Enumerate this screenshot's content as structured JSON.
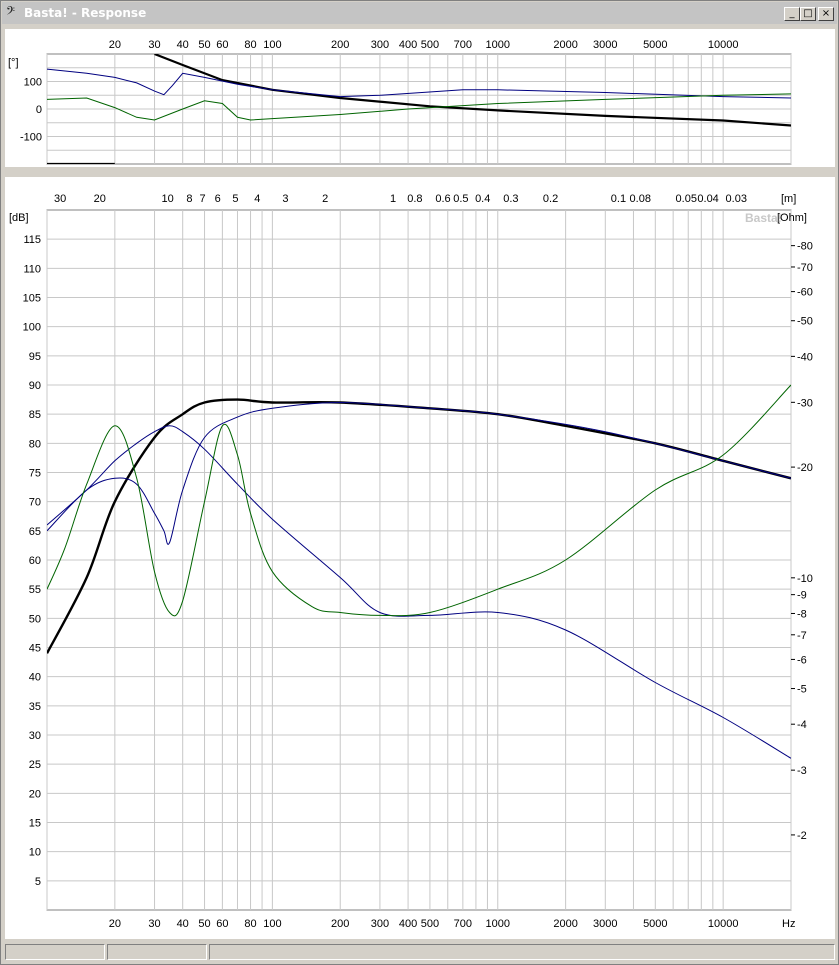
{
  "window": {
    "title": "Basta! - Response",
    "icon": "bass-clef-icon",
    "buttons": {
      "minimize": "_",
      "maximize": "□",
      "close": "×"
    }
  },
  "phase_chart": {
    "unit_label": "[°]",
    "freq_ticks": [
      "20",
      "30",
      "40",
      "50",
      "60",
      "80",
      "100",
      "200",
      "300",
      "400",
      "500",
      "700",
      "1000",
      "2000",
      "3000",
      "5000",
      "10000"
    ],
    "y_ticks": [
      "100",
      "0",
      "-100"
    ]
  },
  "spl_chart": {
    "db_label": "[dB]",
    "ohm_label": "[Ohm]",
    "m_label": "[m]",
    "hz_label": "Hz",
    "watermark": "Basta!",
    "db_ticks": [
      "115",
      "110",
      "105",
      "100",
      "95",
      "90",
      "85",
      "80",
      "75",
      "70",
      "65",
      "60",
      "55",
      "50",
      "45",
      "40",
      "35",
      "30",
      "25",
      "20",
      "15",
      "10",
      "5"
    ],
    "ohm_ticks": [
      "80",
      "70",
      "60",
      "50",
      "40",
      "30",
      "20",
      "10",
      "9",
      "8",
      "7",
      "6",
      "5",
      "4",
      "3",
      "2"
    ],
    "wavelength_ticks": [
      "30",
      "20",
      "10",
      "8",
      "7",
      "6",
      "5",
      "4",
      "3",
      "2",
      "1",
      "0.8",
      "0.6",
      "0.5",
      "0.4",
      "0.3",
      "0.2",
      "0.1",
      "0.08",
      "0.05",
      "0.04",
      "0.03"
    ],
    "freq_ticks": [
      "20",
      "30",
      "40",
      "50",
      "60",
      "80",
      "100",
      "200",
      "300",
      "400",
      "500",
      "700",
      "1000",
      "2000",
      "3000",
      "5000",
      "10000"
    ]
  },
  "colors": {
    "spl": "#000000",
    "blue_curves": "#000080",
    "green_curve": "#006400",
    "grid": "#c8c8c8"
  },
  "chart_data": [
    {
      "type": "line",
      "title": "",
      "xlabel": "",
      "ylabel": "[°]",
      "xscale": "log",
      "xlim": [
        10,
        20000
      ],
      "ylim": [
        -200,
        200
      ],
      "series": [
        {
          "name": "",
          "color": "black",
          "x": [
            10,
            20,
            30,
            40,
            60,
            100,
            200,
            500,
            1000,
            3000,
            10000,
            20000
          ],
          "y": [
            -200,
            -200,
            200,
            160,
            105,
            70,
            40,
            10,
            -5,
            -25,
            -42,
            -60
          ]
        },
        {
          "name": "",
          "color": "navy",
          "x": [
            10,
            15,
            20,
            25,
            30,
            33,
            36,
            40,
            50,
            70,
            100,
            200,
            300,
            700,
            1000,
            3000,
            10000,
            20000
          ],
          "y": [
            145,
            130,
            115,
            95,
            65,
            52,
            85,
            130,
            115,
            90,
            70,
            45,
            50,
            70,
            70,
            60,
            45,
            40
          ]
        },
        {
          "name": "",
          "color": "green",
          "x": [
            10,
            15,
            20,
            25,
            30,
            40,
            50,
            60,
            70,
            80,
            100,
            200,
            400,
            1000,
            3000,
            10000,
            20000
          ],
          "y": [
            35,
            40,
            5,
            -30,
            -40,
            0,
            30,
            20,
            -30,
            -40,
            -35,
            -20,
            0,
            20,
            35,
            50,
            55
          ]
        }
      ]
    },
    {
      "type": "line",
      "title": "",
      "xlabel": "Hz",
      "ylabel": "[dB]",
      "xscale": "log",
      "xlim": [
        10,
        20000
      ],
      "ylim": [
        0,
        120
      ],
      "series": [
        {
          "name": "",
          "color": "black",
          "x": [
            10,
            15,
            20,
            30,
            40,
            50,
            70,
            100,
            200,
            500,
            1000,
            2000,
            5000,
            10000,
            20000
          ],
          "y": [
            44,
            57,
            70,
            81,
            85,
            87,
            87.5,
            87,
            87,
            86,
            85,
            83,
            80,
            77,
            74
          ]
        },
        {
          "name": "",
          "color": "navy",
          "x": [
            10,
            15,
            20,
            25,
            30,
            35,
            40,
            50,
            70,
            100,
            200,
            300,
            500,
            1000,
            2000,
            5000,
            10000,
            20000
          ],
          "y": [
            66,
            72,
            77,
            80,
            82,
            83,
            82,
            79,
            73,
            67,
            57,
            51,
            50.5,
            51,
            48,
            39,
            33,
            26
          ]
        },
        {
          "name": "",
          "color": "navy",
          "x": [
            10,
            15,
            20,
            25,
            30,
            33,
            35,
            40,
            50,
            70,
            100,
            200,
            500,
            1000,
            3000,
            10000,
            20000
          ],
          "y": [
            65,
            72,
            74,
            73,
            68,
            65,
            63,
            72,
            81,
            84.5,
            86,
            87,
            86,
            85,
            82,
            77,
            74
          ]
        },
        {
          "name": "",
          "color": "green",
          "x": [
            10,
            12,
            15,
            20,
            25,
            30,
            35,
            40,
            50,
            60,
            70,
            80,
            100,
            150,
            200,
            300,
            500,
            1000,
            2000,
            5000,
            10000,
            20000
          ],
          "y": [
            55,
            62,
            73,
            83,
            74,
            58,
            51,
            53,
            70,
            83,
            78,
            68,
            58,
            52,
            51,
            50.5,
            51,
            55,
            60,
            72,
            78,
            90
          ]
        }
      ]
    }
  ]
}
